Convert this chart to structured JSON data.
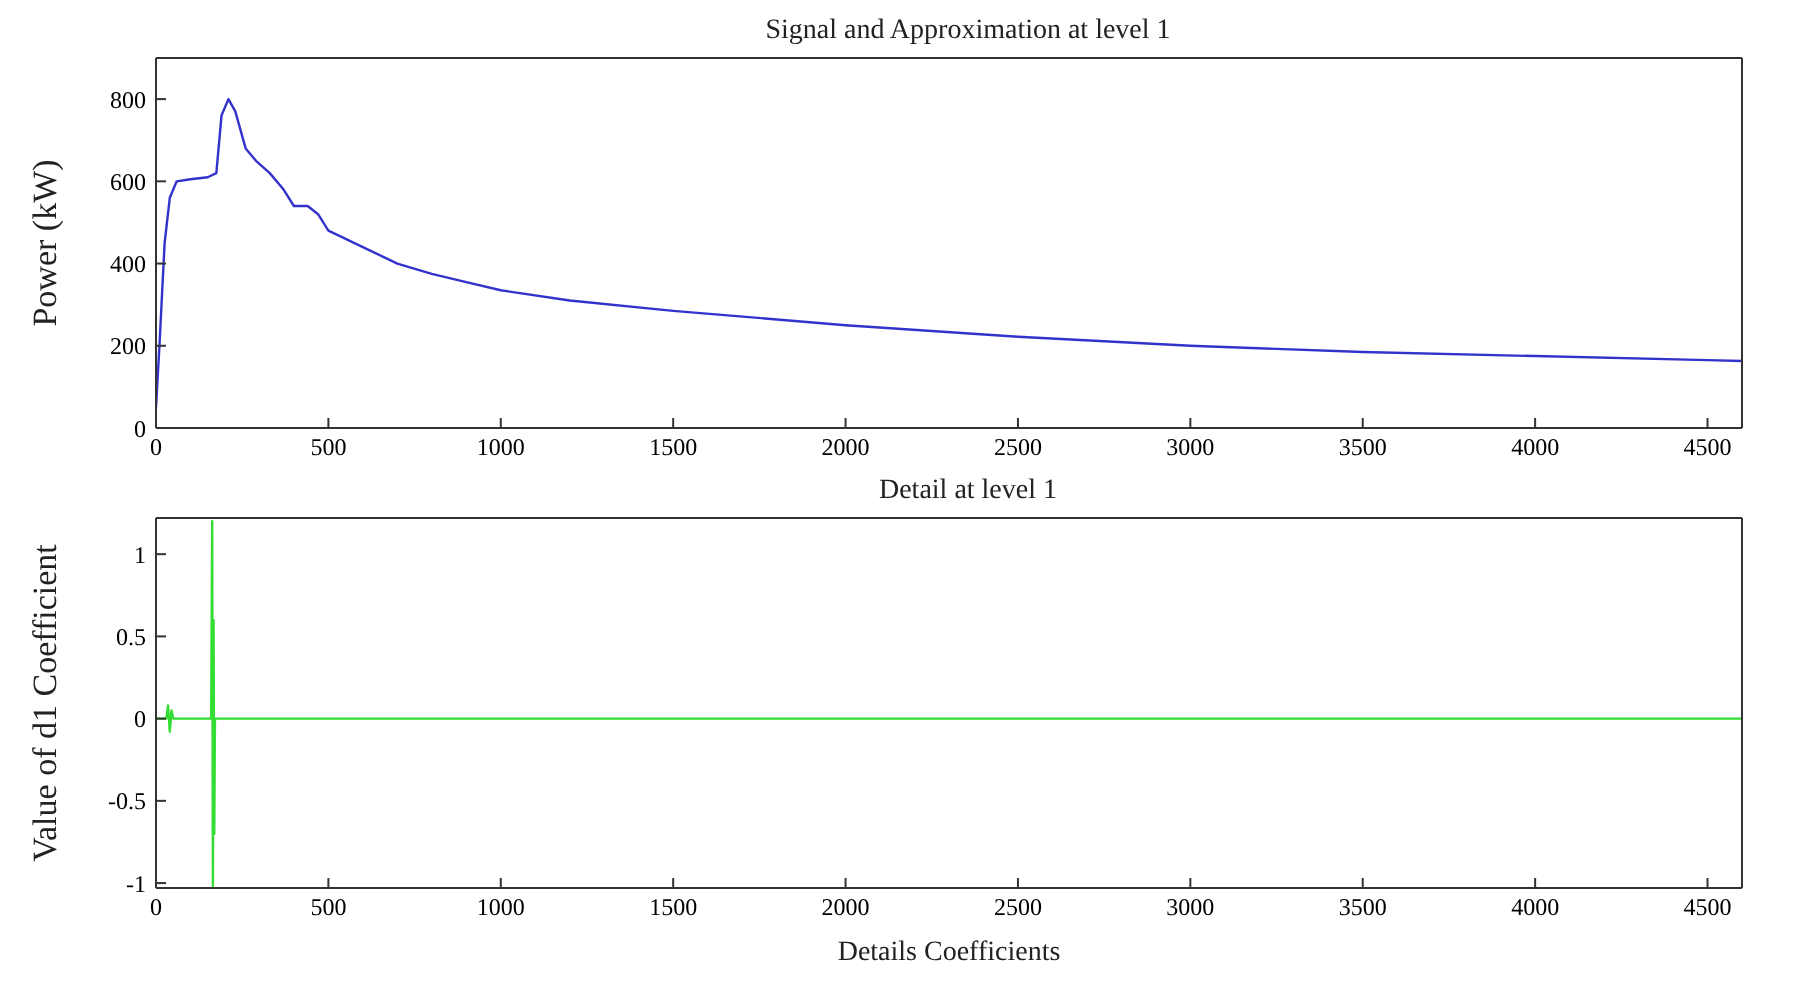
{
  "chart_data": [
    {
      "type": "line",
      "title": "Signal and Approximation at level 1",
      "ylabel": "Power (kW)",
      "xlim": [
        0,
        4600
      ],
      "xticks": [
        0,
        500,
        1000,
        1500,
        2000,
        2500,
        3000,
        3500,
        4000,
        4500
      ],
      "ylim": [
        0,
        900
      ],
      "yticks": [
        0,
        200,
        400,
        600,
        800
      ],
      "series": [
        {
          "color": "#3333cc",
          "x": [
            0,
            10,
            25,
            40,
            60,
            100,
            150,
            175,
            190,
            210,
            230,
            260,
            290,
            330,
            370,
            400,
            440,
            470,
            500,
            550,
            600,
            700,
            800,
            900,
            1000,
            1200,
            1500,
            2000,
            2500,
            3000,
            3500,
            4000,
            4500,
            4600
          ],
          "values": [
            50,
            200,
            450,
            560,
            600,
            605,
            610,
            620,
            760,
            800,
            770,
            680,
            650,
            620,
            580,
            540,
            540,
            520,
            480,
            460,
            440,
            400,
            375,
            355,
            335,
            310,
            285,
            250,
            222,
            200,
            185,
            175,
            165,
            163
          ]
        }
      ]
    },
    {
      "type": "line",
      "title": "Detail at level 1",
      "xlabel": "Details Coefficients",
      "ylabel": "Value of d1  Coefficient",
      "xlim": [
        0,
        4600
      ],
      "xticks": [
        0,
        500,
        1000,
        1500,
        2000,
        2500,
        3000,
        3500,
        4000,
        4500
      ],
      "ylim": [
        -1.03,
        1.22
      ],
      "yticks": [
        -1,
        -0.5,
        0,
        0.5,
        1
      ],
      "series": [
        {
          "color": "#33dd33",
          "x": [
            0,
            30,
            35,
            40,
            45,
            50,
            160,
            163,
            165,
            167,
            169,
            171,
            300,
            1000,
            2000,
            3000,
            4600
          ],
          "values": [
            0,
            0,
            0.08,
            -0.08,
            0.05,
            0,
            0,
            1.2,
            -1.03,
            0.6,
            -0.7,
            0,
            0,
            0,
            0,
            0,
            0
          ]
        }
      ]
    }
  ]
}
